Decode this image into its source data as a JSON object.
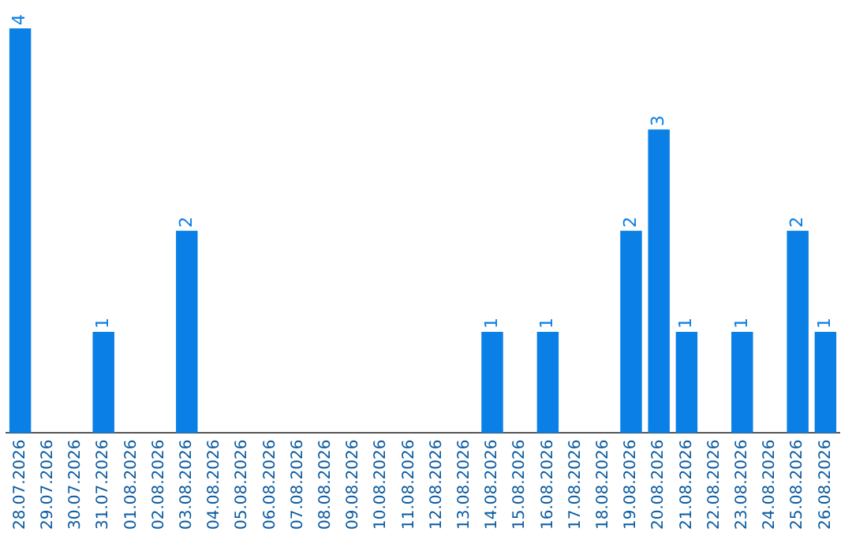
{
  "chart_data": {
    "type": "bar",
    "categories": [
      "28.07.2026",
      "29.07.2026",
      "30.07.2026",
      "31.07.2026",
      "01.08.2026",
      "02.08.2026",
      "03.08.2026",
      "04.08.2026",
      "05.08.2026",
      "06.08.2026",
      "07.08.2026",
      "08.08.2026",
      "09.08.2026",
      "10.08.2026",
      "11.08.2026",
      "12.08.2026",
      "13.08.2026",
      "14.08.2026",
      "15.08.2026",
      "16.08.2026",
      "17.08.2026",
      "18.08.2026",
      "19.08.2026",
      "20.08.2026",
      "21.08.2026",
      "22.08.2026",
      "23.08.2026",
      "24.08.2026",
      "25.08.2026",
      "26.08.2026"
    ],
    "values": [
      4,
      0,
      0,
      1,
      0,
      0,
      2,
      0,
      0,
      0,
      0,
      0,
      0,
      0,
      0,
      0,
      0,
      1,
      0,
      1,
      0,
      0,
      2,
      3,
      1,
      0,
      1,
      0,
      2,
      1
    ],
    "value_labels": [
      "4",
      null,
      null,
      "1",
      null,
      null,
      "2",
      null,
      null,
      null,
      null,
      null,
      null,
      null,
      null,
      null,
      null,
      "1",
      null,
      "1",
      null,
      null,
      "2",
      "3",
      "1",
      null,
      "1",
      null,
      "2",
      "1"
    ],
    "color": "#0a7fe6",
    "grid": false,
    "legend": false
  }
}
